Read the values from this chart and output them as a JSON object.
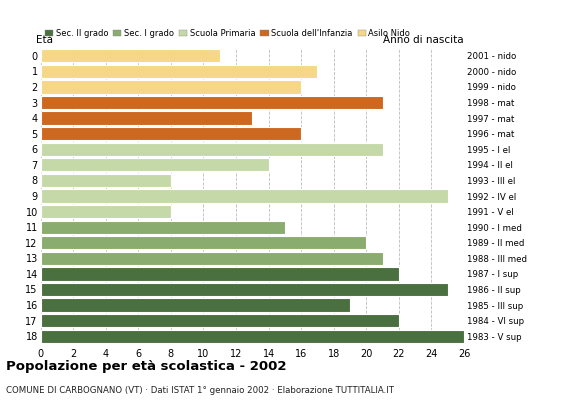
{
  "ages": [
    18,
    17,
    16,
    15,
    14,
    13,
    12,
    11,
    10,
    9,
    8,
    7,
    6,
    5,
    4,
    3,
    2,
    1,
    0
  ],
  "values": [
    26,
    22,
    19,
    25,
    22,
    21,
    20,
    15,
    8,
    25,
    8,
    14,
    21,
    16,
    13,
    21,
    16,
    17,
    11
  ],
  "anno_nascita": [
    "1983 - V sup",
    "1984 - VI sup",
    "1985 - III sup",
    "1986 - II sup",
    "1987 - I sup",
    "1988 - III med",
    "1989 - II med",
    "1990 - I med",
    "1991 - V el",
    "1992 - IV el",
    "1993 - III el",
    "1994 - II el",
    "1995 - I el",
    "1996 - mat",
    "1997 - mat",
    "1998 - mat",
    "1999 - nido",
    "2000 - nido",
    "2001 - nido"
  ],
  "categories": {
    "sec2": {
      "ages": [
        18,
        17,
        16,
        15,
        14
      ],
      "color": "#4a7040"
    },
    "sec1": {
      "ages": [
        13,
        12,
        11
      ],
      "color": "#8aac6e"
    },
    "primaria": {
      "ages": [
        10,
        9,
        8,
        7,
        6
      ],
      "color": "#c5d9a8"
    },
    "infanzia": {
      "ages": [
        5,
        4,
        3
      ],
      "color": "#cc6820"
    },
    "nido": {
      "ages": [
        2,
        1,
        0
      ],
      "color": "#f5d787"
    }
  },
  "legend_labels": [
    "Sec. II grado",
    "Sec. I grado",
    "Scuola Primaria",
    "Scuola dell'Infanzia",
    "Asilo Nido"
  ],
  "legend_colors": [
    "#4a7040",
    "#8aac6e",
    "#c5d9a8",
    "#cc6820",
    "#f5d787"
  ],
  "title": "Popolazione per età scolastica - 2002",
  "subtitle": "COMUNE DI CARBOGNANO (VT) · Dati ISTAT 1° gennaio 2002 · Elaborazione TUTTITALIA.IT",
  "ylabel_left": "Età",
  "ylabel_right": "Anno di nascita",
  "xlim": [
    0,
    26
  ],
  "xticks": [
    0,
    2,
    4,
    6,
    8,
    10,
    12,
    14,
    16,
    18,
    20,
    22,
    24,
    26
  ],
  "background_color": "#ffffff",
  "bar_edgecolor": "#ffffff",
  "grid_color": "#bbbbbb"
}
